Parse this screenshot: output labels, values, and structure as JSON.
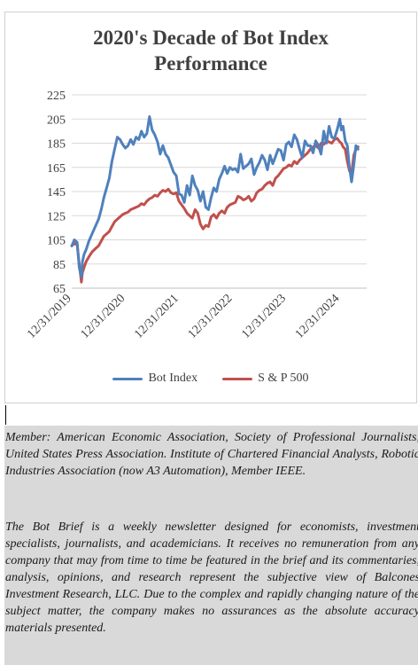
{
  "chart_data": {
    "type": "line",
    "title_lines": [
      "2020's Decade of Bot Index",
      "Performance"
    ],
    "xlabel": "",
    "ylabel": "",
    "ylim": [
      65,
      225
    ],
    "y_ticks": [
      "225",
      "205",
      "185",
      "165",
      "145",
      "125",
      "105",
      "85",
      "65"
    ],
    "x_tick_labels": [
      "12/31/2019",
      "12/31/2020",
      "12/31/2021",
      "12/31/2022",
      "12/31/2023",
      "12/31/2024"
    ],
    "x_tick_years": [
      2020.0,
      2021.0,
      2022.0,
      2023.0,
      2024.0,
      2025.0
    ],
    "xlim": [
      2020.0,
      2025.5
    ],
    "grid": "horizontal",
    "legend_position": "bottom",
    "series": [
      {
        "name": "Bot Index",
        "color": "#4f81bd",
        "x": [
          2020.0,
          2020.05,
          2020.1,
          2020.14,
          2020.18,
          2020.2,
          2020.23,
          2020.27,
          2020.32,
          2020.38,
          2020.45,
          2020.5,
          2020.55,
          2020.6,
          2020.65,
          2020.7,
          2020.75,
          2020.8,
          2020.85,
          2020.9,
          2020.95,
          2021.0,
          2021.05,
          2021.1,
          2021.15,
          2021.2,
          2021.25,
          2021.3,
          2021.35,
          2021.4,
          2021.45,
          2021.5,
          2021.55,
          2021.6,
          2021.65,
          2021.7,
          2021.75,
          2021.8,
          2021.85,
          2021.9,
          2021.95,
          2022.0,
          2022.05,
          2022.1,
          2022.15,
          2022.2,
          2022.25,
          2022.3,
          2022.35,
          2022.4,
          2022.45,
          2022.5,
          2022.55,
          2022.6,
          2022.65,
          2022.7,
          2022.75,
          2022.8,
          2022.85,
          2022.9,
          2022.95,
          2023.0,
          2023.05,
          2023.1,
          2023.15,
          2023.2,
          2023.25,
          2023.3,
          2023.35,
          2023.4,
          2023.45,
          2023.5,
          2023.55,
          2023.6,
          2023.65,
          2023.7,
          2023.75,
          2023.8,
          2023.85,
          2023.9,
          2023.95,
          2024.0,
          2024.05,
          2024.1,
          2024.15,
          2024.2,
          2024.25,
          2024.3,
          2024.35,
          2024.4,
          2024.45,
          2024.5,
          2024.55,
          2024.6,
          2024.65,
          2024.7,
          2024.75,
          2024.8,
          2024.85,
          2024.9,
          2024.95,
          2025.0,
          2025.03,
          2025.06,
          2025.1,
          2025.14,
          2025.18,
          2025.22,
          2025.26,
          2025.3,
          2025.34
        ],
        "values": [
          100,
          105,
          103,
          82,
          74,
          87,
          93,
          97,
          104,
          110,
          117,
          122,
          130,
          140,
          148,
          156,
          170,
          180,
          190,
          188,
          184,
          181,
          183,
          188,
          184,
          190,
          188,
          195,
          190,
          193,
          207,
          196,
          192,
          186,
          176,
          183,
          176,
          173,
          167,
          161,
          158,
          143,
          142,
          136,
          150,
          142,
          158,
          150,
          146,
          137,
          145,
          132,
          130,
          140,
          148,
          145,
          155,
          160,
          166,
          160,
          165,
          163,
          164,
          161,
          176,
          164,
          166,
          168,
          172,
          159,
          165,
          169,
          175,
          171,
          163,
          175,
          168,
          174,
          180,
          179,
          171,
          184,
          186,
          182,
          192,
          188,
          180,
          173,
          187,
          183,
          183,
          177,
          187,
          183,
          176,
          195,
          185,
          199,
          190,
          189,
          196,
          205,
          196,
          199,
          187,
          183,
          165,
          153,
          167,
          183,
          180
        ]
      },
      {
        "name": "S & P 500",
        "color": "#c0504d",
        "x": [
          2020.0,
          2020.05,
          2020.1,
          2020.14,
          2020.18,
          2020.2,
          2020.23,
          2020.27,
          2020.32,
          2020.38,
          2020.45,
          2020.5,
          2020.55,
          2020.6,
          2020.65,
          2020.7,
          2020.75,
          2020.8,
          2020.85,
          2020.9,
          2020.95,
          2021.0,
          2021.05,
          2021.1,
          2021.15,
          2021.2,
          2021.25,
          2021.3,
          2021.35,
          2021.4,
          2021.45,
          2021.5,
          2021.55,
          2021.6,
          2021.65,
          2021.7,
          2021.75,
          2021.8,
          2021.85,
          2021.9,
          2021.95,
          2022.0,
          2022.05,
          2022.1,
          2022.15,
          2022.2,
          2022.25,
          2022.3,
          2022.35,
          2022.4,
          2022.45,
          2022.5,
          2022.55,
          2022.6,
          2022.65,
          2022.7,
          2022.75,
          2022.8,
          2022.85,
          2022.9,
          2022.95,
          2023.0,
          2023.05,
          2023.1,
          2023.15,
          2023.2,
          2023.25,
          2023.3,
          2023.35,
          2023.4,
          2023.45,
          2023.5,
          2023.55,
          2023.6,
          2023.65,
          2023.7,
          2023.75,
          2023.8,
          2023.85,
          2023.9,
          2023.95,
          2024.0,
          2024.05,
          2024.1,
          2024.15,
          2024.2,
          2024.25,
          2024.3,
          2024.35,
          2024.4,
          2024.45,
          2024.5,
          2024.55,
          2024.6,
          2024.65,
          2024.7,
          2024.75,
          2024.8,
          2024.85,
          2024.9,
          2024.95,
          2025.0,
          2025.03,
          2025.06,
          2025.1,
          2025.14,
          2025.18,
          2025.22,
          2025.26,
          2025.3,
          2025.34
        ],
        "values": [
          100,
          102,
          101,
          85,
          70,
          78,
          82,
          87,
          91,
          95,
          98,
          100,
          104,
          108,
          110,
          112,
          116,
          120,
          122,
          124,
          126,
          127,
          128,
          130,
          131,
          132,
          133,
          135,
          134,
          137,
          139,
          140,
          142,
          141,
          144,
          146,
          145,
          147,
          144,
          143,
          144,
          137,
          134,
          131,
          127,
          125,
          123,
          130,
          127,
          118,
          114,
          117,
          116,
          124,
          126,
          123,
          127,
          129,
          127,
          132,
          134,
          135,
          136,
          141,
          140,
          138,
          139,
          141,
          137,
          139,
          144,
          146,
          147,
          150,
          152,
          153,
          150,
          156,
          158,
          161,
          164,
          165,
          167,
          166,
          170,
          168,
          171,
          173,
          175,
          177,
          180,
          182,
          183,
          181,
          185,
          184,
          187,
          186,
          185,
          188,
          189,
          186,
          185,
          182,
          180,
          170,
          162,
          160,
          175,
          180,
          182
        ]
      }
    ]
  },
  "notes": {
    "member": "Member: American Economic Association, Society of Professional Journalists, United States Press Association. Institute of Chartered Financial Analysts, Robotic Industries Association (now A3 Automation), Member IEEE.",
    "disclaimer": "The Bot Brief is a weekly newsletter designed for economists, investment specialists, journalists, and academicians. It receives no remuneration from any company that may from time to time be featured in the brief and its commentaries, analysis, opinions, and research represent the subjective view of Balcones Investment Research, LLC. Due to the complex and rapidly changing nature of the subject matter, the company makes no assurances as the absolute accuracy materials presented."
  }
}
